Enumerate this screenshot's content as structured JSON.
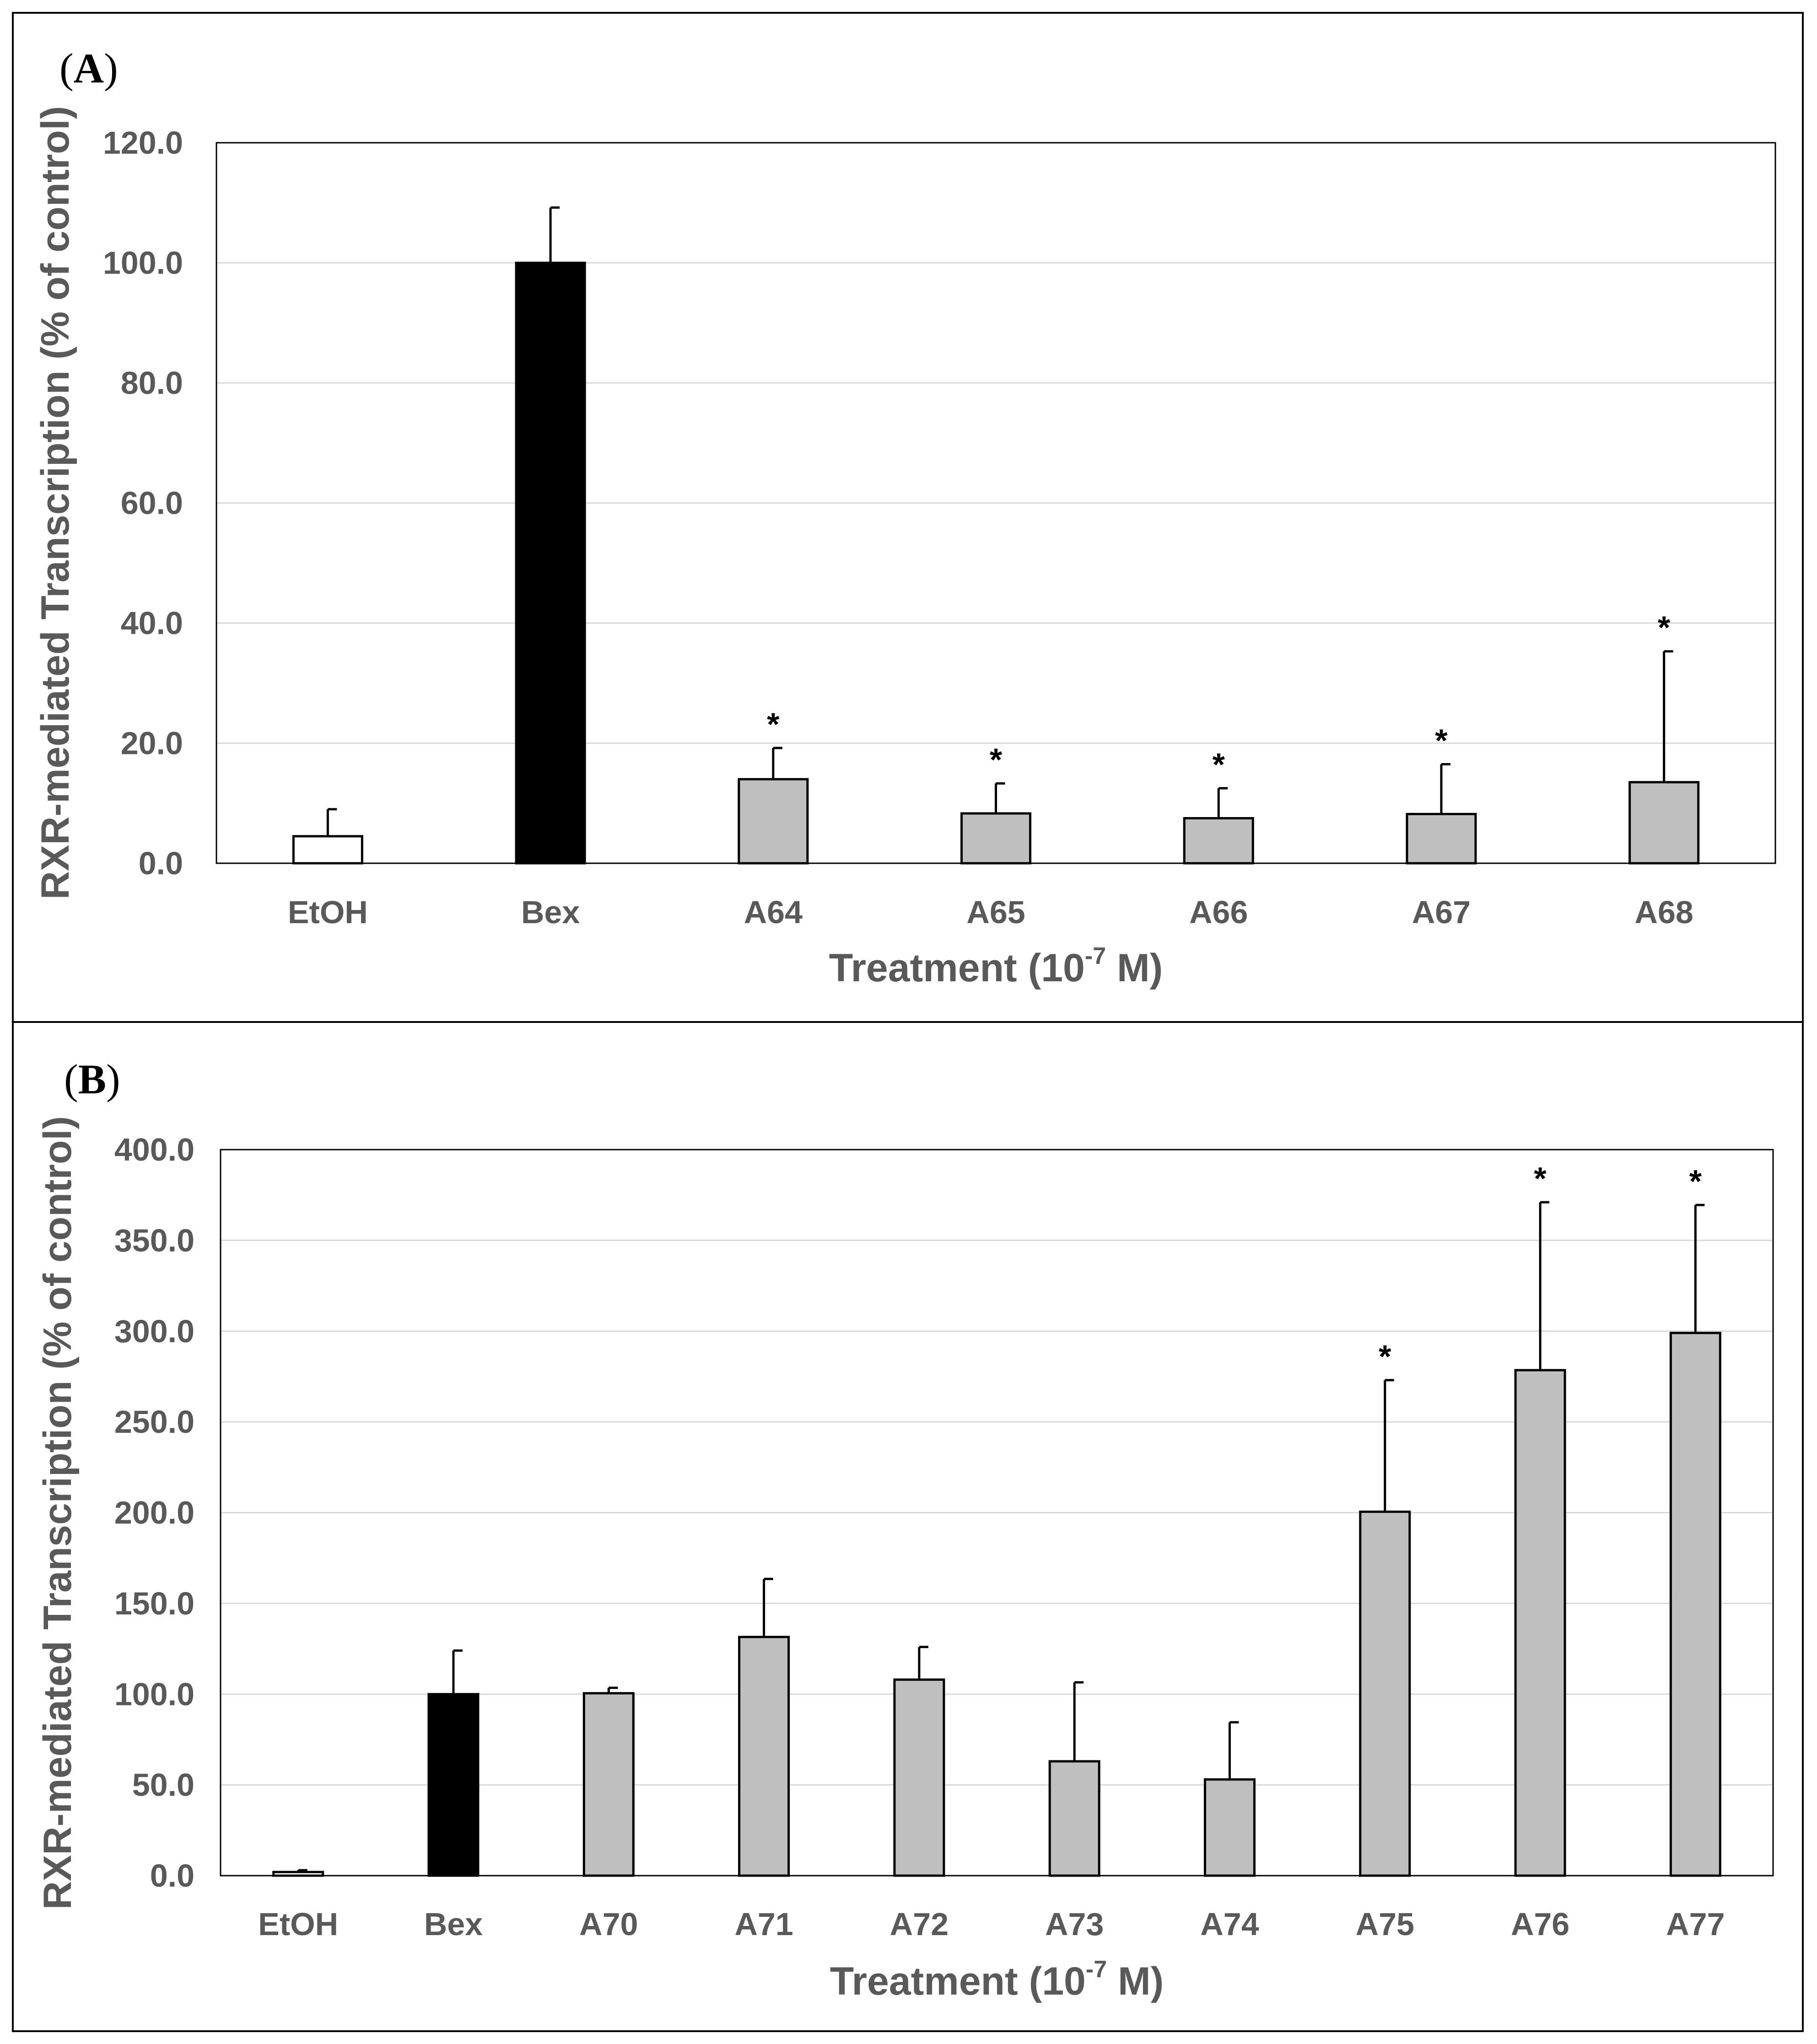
{
  "chart_data": [
    {
      "type": "bar",
      "panel_label": "A",
      "title": "",
      "xlabel": "Treatment (10",
      "xlabel_exponent": "-7",
      "xlabel_unit": "M)",
      "ylabel": "RXR-mediated Transcription (% of control)",
      "ylim": [
        0,
        120
      ],
      "yticks": [
        "0.0",
        "20.0",
        "40.0",
        "60.0",
        "80.0",
        "100.0",
        "120.0"
      ],
      "grid": true,
      "categories": [
        "EtOH",
        "Bex",
        "A64",
        "A65",
        "A66",
        "A67",
        "A68"
      ],
      "values": [
        4.5,
        100.0,
        14.0,
        8.3,
        7.5,
        8.2,
        13.5
      ],
      "errors": [
        4.5,
        9.2,
        5.2,
        5.0,
        5.0,
        8.3,
        21.8
      ],
      "significance": [
        "",
        "",
        "*",
        "*",
        "*",
        "*",
        "*"
      ],
      "fills": [
        "#ffffff",
        "#000000",
        "#bfbfbf",
        "#bfbfbf",
        "#bfbfbf",
        "#bfbfbf",
        "#bfbfbf"
      ]
    },
    {
      "type": "bar",
      "panel_label": "B",
      "title": "",
      "xlabel": "Treatment (10",
      "xlabel_exponent": "-7",
      "xlabel_unit": "M)",
      "ylabel": "RXR-mediated Transcription (% of control)",
      "ylim": [
        0,
        400
      ],
      "yticks": [
        "0.0",
        "50.0",
        "100.0",
        "150.0",
        "200.0",
        "250.0",
        "300.0",
        "350.0",
        "400.0"
      ],
      "grid": true,
      "categories": [
        "EtOH",
        "Bex",
        "A70",
        "A71",
        "A72",
        "A73",
        "A74",
        "A75",
        "A76",
        "A77"
      ],
      "values": [
        2.0,
        100.0,
        100.5,
        131.5,
        108.0,
        63.0,
        53.0,
        200.5,
        278.5,
        299.0
      ],
      "errors": [
        1.0,
        24.0,
        3.0,
        32.0,
        18.0,
        43.5,
        31.5,
        72.5,
        92.5,
        70.5
      ],
      "significance": [
        "",
        "",
        "",
        "",
        "",
        "",
        "",
        "*",
        "*",
        "*"
      ],
      "fills": [
        "#ffffff",
        "#000000",
        "#bfbfbf",
        "#bfbfbf",
        "#bfbfbf",
        "#bfbfbf",
        "#bfbfbf",
        "#bfbfbf",
        "#bfbfbf",
        "#bfbfbf"
      ]
    }
  ]
}
